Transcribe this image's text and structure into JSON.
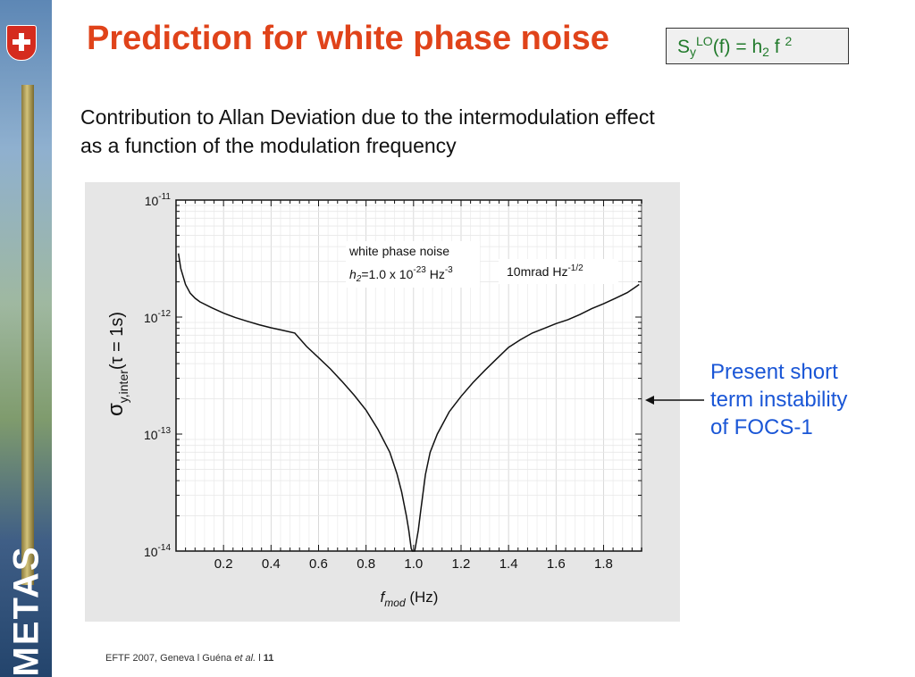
{
  "slide": {
    "title": "Prediction for white phase noise",
    "formula": {
      "S": "S",
      "sub_y": "y",
      "sup_LO": "LO",
      "mid": "(f) = h",
      "sub_2": "2",
      "tail": " f ",
      "sup_2": "2"
    },
    "subtitle_line1": "Contribution to Allan Deviation due to the intermodulation effect",
    "subtitle_line2": "as a function of the modulation frequency",
    "note_lines": [
      "Present short",
      "term instability",
      "of FOCS-1"
    ],
    "footer": {
      "event": "EFTF 2007, Geneva l  Guéna ",
      "etal": "et al.",
      "sep": "  l  ",
      "page": "11"
    },
    "logo_text": "METAS"
  },
  "chart_data": {
    "type": "line",
    "x_scale": "linear",
    "y_scale": "log",
    "xlim": [
      0.0,
      1.96
    ],
    "ylim": [
      1e-14,
      1e-11
    ],
    "x_ticks": [
      "0.2",
      "0.4",
      "0.6",
      "0.8",
      "1.0",
      "1.2",
      "1.4",
      "1.6",
      "1.8"
    ],
    "x_tick_values": [
      0.2,
      0.4,
      0.6,
      0.8,
      1.0,
      1.2,
      1.4,
      1.6,
      1.8
    ],
    "y_tick_values": [
      1e-11,
      1e-12,
      1e-13,
      1e-14
    ],
    "y_ticks": [
      {
        "base": "10",
        "exp": "-11"
      },
      {
        "base": "10",
        "exp": "-12"
      },
      {
        "base": "10",
        "exp": "-13"
      },
      {
        "base": "10",
        "exp": "-14"
      }
    ],
    "xlabel": {
      "f": "f",
      "sub": "mod",
      "unit": " (Hz)"
    },
    "ylabel": {
      "sigma": "σ",
      "sub": "y,inter",
      "rest": "(τ = 1s)"
    },
    "grid": true,
    "annotations": {
      "box1_line1": "white phase noise",
      "box1_h": "h",
      "box1_h_sub": "2",
      "box1_eq": "=1.0 x 10",
      "box1_exp1": "-23",
      "box1_unit": " Hz",
      "box1_exp2": "-3",
      "box2_text": "10mrad Hz",
      "box2_exp": "-1/2"
    },
    "series": [
      {
        "x": [
          0.01,
          0.02,
          0.04,
          0.06,
          0.08,
          0.1,
          0.15,
          0.2,
          0.25,
          0.3,
          0.35,
          0.4,
          0.45,
          0.5,
          0.55,
          0.6,
          0.65,
          0.7,
          0.75,
          0.8,
          0.85,
          0.9,
          0.93,
          0.95,
          0.97,
          0.98,
          0.99,
          0.995,
          1.005,
          1.01,
          1.02,
          1.03,
          1.05,
          1.07,
          1.1,
          1.15,
          1.2,
          1.25,
          1.3,
          1.35,
          1.4,
          1.45,
          1.5,
          1.55,
          1.6,
          1.65,
          1.7,
          1.75,
          1.8,
          1.85,
          1.9,
          1.93,
          1.95
        ],
        "y": [
          3.5e-12,
          2.6e-12,
          1.9e-12,
          1.6e-12,
          1.45e-12,
          1.35e-12,
          1.2e-12,
          1.08e-12,
          9.9e-13,
          9.2e-13,
          8.6e-13,
          8.1e-13,
          7.7e-13,
          7.3e-13,
          5.6e-13,
          4.5e-13,
          3.6e-13,
          2.8e-13,
          2.15e-13,
          1.6e-13,
          1.1e-13,
          7e-14,
          4.6e-14,
          3.2e-14,
          2e-14,
          1.5e-14,
          1.05e-14,
          1e-14,
          1e-14,
          1.15e-14,
          1.5e-14,
          2.2e-14,
          4.5e-14,
          7e-14,
          1e-13,
          1.55e-13,
          2.1e-13,
          2.75e-13,
          3.5e-13,
          4.4e-13,
          5.5e-13,
          6.4e-13,
          7.3e-13,
          8e-13,
          8.8e-13,
          9.5e-13,
          1.05e-12,
          1.18e-12,
          1.3e-12,
          1.45e-12,
          1.62e-12,
          1.78e-12,
          1.9e-12
        ]
      }
    ]
  }
}
